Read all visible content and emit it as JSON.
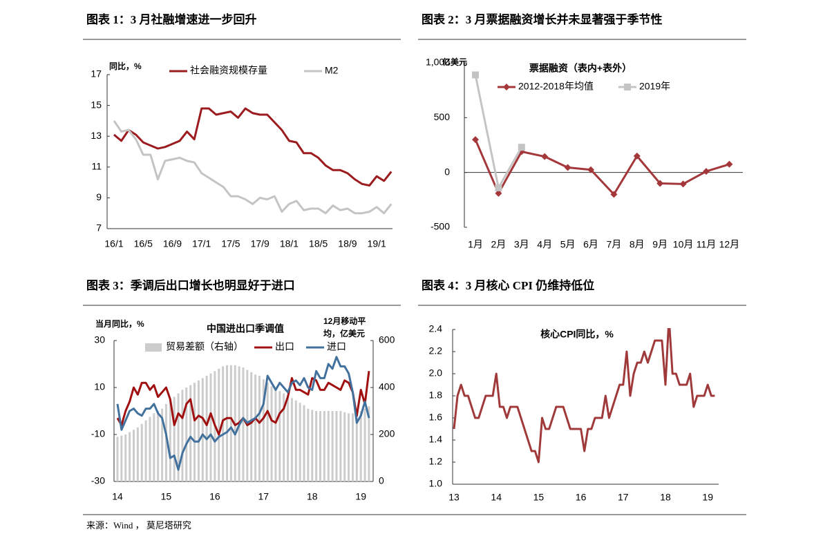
{
  "chart_data": [
    {
      "type": "line",
      "title": "图表 1：3 月社融增速进一步回升",
      "ylabel": "同比，%",
      "categories": [
        "16/1",
        null,
        null,
        null,
        "16/5",
        null,
        null,
        null,
        "16/9",
        null,
        null,
        null,
        "17/1",
        null,
        null,
        null,
        "17/5",
        null,
        null,
        null,
        "17/9",
        null,
        null,
        null,
        "18/1",
        null,
        null,
        null,
        "18/5",
        null,
        null,
        null,
        "18/9",
        null,
        null,
        null,
        "19/1",
        null,
        null
      ],
      "series": [
        {
          "name": "社会融资规模存量",
          "color": "#9b1b1e",
          "values": [
            13.1,
            12.7,
            13.4,
            13.1,
            12.6,
            12.4,
            12.2,
            12.3,
            12.5,
            12.7,
            13.3,
            12.8,
            14.8,
            14.8,
            14.4,
            14.5,
            14.6,
            14.2,
            14.8,
            14.5,
            14.4,
            14.4,
            13.9,
            13.4,
            12.7,
            12.6,
            11.9,
            11.9,
            11.6,
            11.1,
            10.8,
            10.8,
            10.6,
            10.2,
            9.9,
            9.8,
            10.4,
            10.1,
            10.7
          ]
        },
        {
          "name": "M2",
          "color": "#c4c4c4",
          "values": [
            14.0,
            13.3,
            13.4,
            12.8,
            11.8,
            11.8,
            10.2,
            11.4,
            11.5,
            11.6,
            11.4,
            11.3,
            10.6,
            10.3,
            10.0,
            9.7,
            9.1,
            9.1,
            8.9,
            8.6,
            9.0,
            8.9,
            9.1,
            8.1,
            8.6,
            8.8,
            8.2,
            8.3,
            8.3,
            8.0,
            8.5,
            8.2,
            8.3,
            8.0,
            8.0,
            8.1,
            8.4,
            8.0,
            8.6
          ]
        }
      ],
      "ylim": [
        7,
        17
      ],
      "yticks": [
        7,
        9,
        11,
        13,
        15,
        17
      ]
    },
    {
      "type": "line",
      "title": "图表 2：3 月票据融资增长并未显著强于季节性",
      "subtitle": "票据融资（表内+表外）",
      "ylabel": "亿美元",
      "categories": [
        "1月",
        "2月",
        "3月",
        "4月",
        "5月",
        "6月",
        "7月",
        "8月",
        "9月",
        "10月",
        "11月",
        "12月"
      ],
      "series": [
        {
          "name": "2012-2018年均值",
          "color": "#a3373a",
          "marker": "diamond",
          "values": [
            300,
            -190,
            190,
            145,
            45,
            25,
            -200,
            150,
            -100,
            -105,
            10,
            75
          ]
        },
        {
          "name": "2019年",
          "color": "#c4c4c4",
          "marker": "square",
          "values": [
            890,
            -140,
            230,
            null,
            null,
            null,
            null,
            null,
            null,
            null,
            null,
            null
          ]
        }
      ],
      "ylim": [
        -500,
        1000
      ],
      "yticks": [
        -500,
        0,
        500,
        {
          "value": 1000,
          "label": "1,000"
        }
      ],
      "zeroline": true
    },
    {
      "type": "combo",
      "title": "图表 3：季调后出口增长也明显好于进口",
      "subtitle": "中国进出口季调值",
      "ylabel": "当月同比，%",
      "y2label": "12月移动平均，亿美元",
      "categories": [
        "14",
        null,
        null,
        null,
        null,
        null,
        null,
        null,
        null,
        null,
        null,
        null,
        "15",
        null,
        null,
        null,
        null,
        null,
        null,
        null,
        null,
        null,
        null,
        null,
        "16",
        null,
        null,
        null,
        null,
        null,
        null,
        null,
        null,
        null,
        null,
        null,
        "17",
        null,
        null,
        null,
        null,
        null,
        null,
        null,
        null,
        null,
        null,
        null,
        "18",
        null,
        null,
        null,
        null,
        null,
        null,
        null,
        null,
        null,
        null,
        null,
        "19",
        null,
        null
      ],
      "series": [
        {
          "name": "贸易差额（右轴）",
          "type": "bar",
          "axis": "y2",
          "color": "#cccccc",
          "values": [
            190,
            195,
            200,
            210,
            220,
            230,
            245,
            260,
            275,
            290,
            300,
            310,
            330,
            350,
            360,
            375,
            390,
            400,
            410,
            420,
            430,
            440,
            450,
            460,
            470,
            480,
            490,
            495,
            495,
            495,
            490,
            485,
            475,
            465,
            455,
            450,
            435,
            420,
            405,
            395,
            385,
            375,
            365,
            355,
            345,
            335,
            325,
            310,
            305,
            300,
            300,
            300,
            300,
            300,
            300,
            300,
            295,
            290,
            290,
            290,
            300,
            310,
            320
          ]
        },
        {
          "name": "出口",
          "type": "line",
          "color": "#a01010",
          "values": [
            -3,
            -6,
            0,
            4,
            10,
            7,
            12,
            12,
            9,
            11,
            6,
            8,
            10,
            5,
            -6,
            -1,
            -3,
            3,
            5,
            -4,
            -2,
            -3,
            -6,
            -1,
            -6,
            -10,
            -4,
            -3,
            -3,
            -6,
            -5,
            -3,
            -6,
            -5,
            -3,
            -5,
            -3,
            0,
            -4,
            -5,
            -1,
            1,
            6,
            14,
            9,
            9,
            8,
            7,
            14,
            13,
            9,
            9,
            12,
            11,
            10,
            9,
            13,
            12,
            8,
            -2,
            9,
            3,
            17
          ]
        },
        {
          "name": "进口",
          "type": "line",
          "color": "#41719c",
          "values": [
            3,
            -8,
            -4,
            0,
            1,
            -1,
            -2,
            1,
            1,
            3,
            -1,
            -3,
            -10,
            -20,
            -19,
            -25,
            -18,
            -14,
            -11,
            -13,
            -13,
            -10,
            -12,
            -10,
            -13,
            -11,
            -10,
            -9,
            -7,
            -10,
            -6,
            -3,
            -5,
            -4,
            -3,
            -1,
            3,
            15,
            12,
            9,
            12,
            10,
            8,
            12,
            13,
            11,
            14,
            10,
            9,
            17,
            14,
            14,
            20,
            18,
            23,
            19,
            19,
            16,
            8,
            -5,
            -2,
            4,
            -3
          ]
        }
      ],
      "ylim": [
        -30,
        30
      ],
      "yticks": [
        -30,
        -10,
        10,
        30
      ],
      "y2lim": [
        0,
        600
      ],
      "y2ticks": [
        0,
        200,
        400,
        600
      ]
    },
    {
      "type": "line",
      "title": "图表 4：3 月核心 CPI 仍维持低位",
      "subtitle": "核心CPI同比，%",
      "categories": [
        "13",
        null,
        null,
        null,
        null,
        null,
        null,
        null,
        null,
        null,
        null,
        null,
        "14",
        null,
        null,
        null,
        null,
        null,
        null,
        null,
        null,
        null,
        null,
        null,
        "15",
        null,
        null,
        null,
        null,
        null,
        null,
        null,
        null,
        null,
        null,
        null,
        "16",
        null,
        null,
        null,
        null,
        null,
        null,
        null,
        null,
        null,
        null,
        null,
        "17",
        null,
        null,
        null,
        null,
        null,
        null,
        null,
        null,
        null,
        null,
        null,
        "18",
        null,
        null,
        null,
        null,
        null,
        null,
        null,
        null,
        null,
        null,
        null,
        "19",
        null,
        null
      ],
      "color": "#a0393a",
      "values": [
        1.5,
        1.8,
        1.9,
        1.8,
        1.8,
        1.7,
        1.6,
        1.6,
        1.7,
        1.8,
        1.8,
        1.8,
        2.0,
        1.7,
        1.7,
        1.6,
        1.7,
        1.7,
        1.7,
        1.6,
        1.5,
        1.4,
        1.3,
        1.3,
        1.2,
        1.6,
        1.5,
        1.5,
        1.6,
        1.7,
        1.7,
        1.7,
        1.6,
        1.5,
        1.5,
        1.5,
        1.5,
        1.3,
        1.5,
        1.5,
        1.6,
        1.6,
        1.6,
        1.8,
        1.6,
        1.7,
        1.8,
        1.9,
        1.9,
        2.2,
        1.8,
        2.0,
        2.1,
        2.1,
        2.2,
        2.1,
        2.2,
        2.3,
        2.3,
        2.3,
        1.9,
        2.5,
        2.0,
        2.0,
        1.9,
        1.9,
        1.9,
        2.0,
        1.7,
        1.8,
        1.8,
        1.8,
        1.9,
        1.8,
        1.8
      ],
      "ylim": [
        1.0,
        2.4
      ],
      "yticks": [
        {
          "value": 1.0,
          "label": "1.0"
        },
        1.2,
        1.4,
        1.6,
        1.8,
        {
          "value": 2.0,
          "label": "2.0"
        },
        2.2,
        2.4
      ]
    }
  ],
  "source": "来源：Wind ， 莫尼塔研究"
}
